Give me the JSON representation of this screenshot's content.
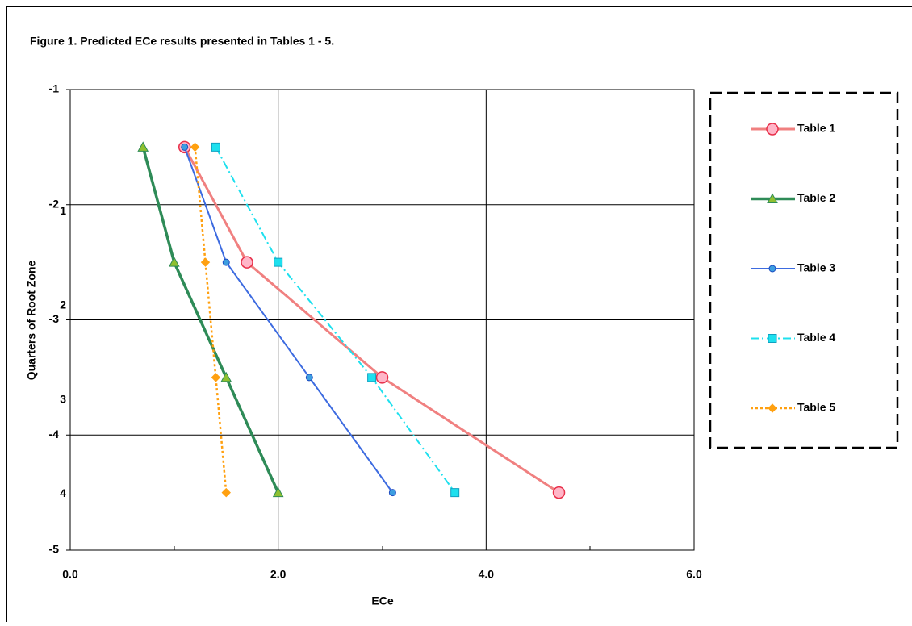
{
  "chart_data": {
    "type": "line",
    "title": "Figure 1. Predicted ECe results presented in Tables 1 - 5.",
    "x_label": "ECe",
    "y_label": "Quarters of  Root Zone",
    "xlim": [
      0,
      6
    ],
    "xticks": [
      {
        "value": 0,
        "label": "0.0"
      },
      {
        "value": 2,
        "label": "2.0"
      },
      {
        "value": 4,
        "label": "4.0"
      },
      {
        "value": 6,
        "label": "6.0"
      }
    ],
    "ylim": [
      -5,
      -1
    ],
    "yticks": [
      -5,
      -4,
      -3,
      -2,
      -1
    ],
    "y2lim": [
      -0.3,
      4.6
    ],
    "y2ticks": [
      1,
      2,
      3,
      4
    ],
    "grid": true,
    "legend": "right",
    "series": [
      {
        "name": "Table  1",
        "color": "#f08080",
        "marker": "circle",
        "x": [
          1.1,
          1.7,
          3.0,
          4.7
        ],
        "values": [
          -1.5,
          -2.5,
          -3.5,
          -4.5
        ]
      },
      {
        "name": "Table 2",
        "color": "#2e8b57",
        "marker": "triangle",
        "x": [
          0.7,
          1.0,
          1.5,
          2.0
        ],
        "values": [
          -1.5,
          -2.5,
          -3.5,
          -4.5
        ]
      },
      {
        "name": "Table 3",
        "color": "#3d6be0",
        "marker": "dot",
        "x": [
          1.1,
          1.5,
          2.3,
          3.1
        ],
        "values": [
          -1.5,
          -2.5,
          -3.5,
          -4.5
        ]
      },
      {
        "name": "Table 4",
        "color": "#1ee0ee",
        "marker": "square",
        "x": [
          1.4,
          2.0,
          2.9,
          3.7
        ],
        "values": [
          -1.5,
          -2.5,
          -3.5,
          -4.5
        ]
      },
      {
        "name": "Table 5",
        "color": "#ffa010",
        "marker": "diamond",
        "x": [
          1.2,
          1.3,
          1.4,
          1.5
        ],
        "values": [
          -1.5,
          -2.5,
          -3.5,
          -4.5
        ]
      }
    ]
  }
}
